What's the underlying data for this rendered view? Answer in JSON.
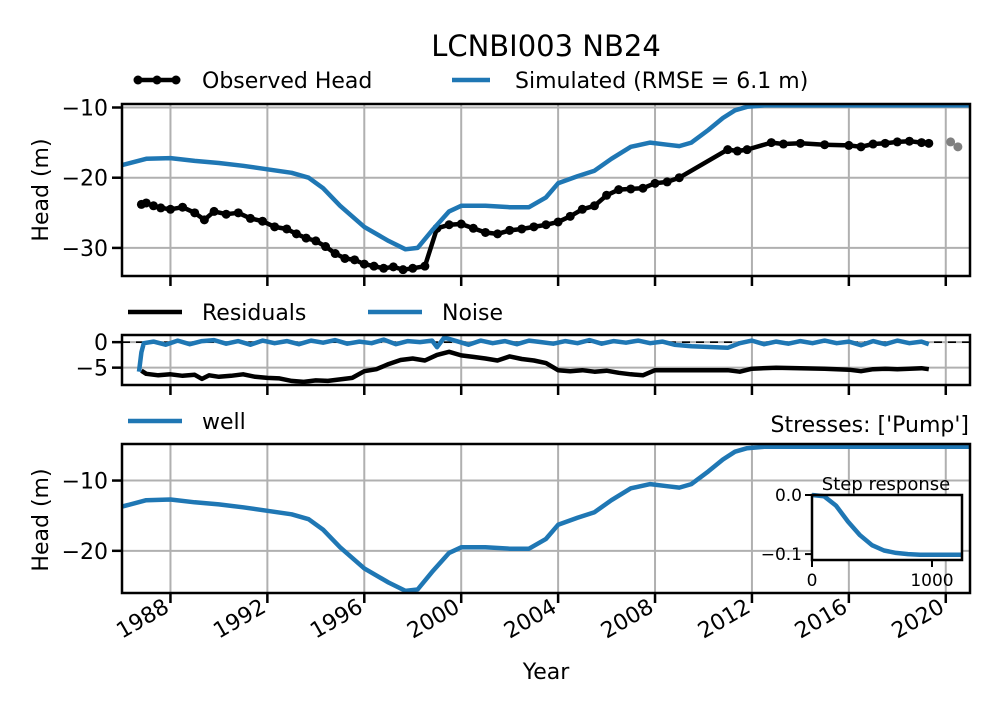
{
  "colors": {
    "observed": "#000000",
    "simulated": "#1f77b4",
    "grid": "#b0b0b0",
    "excluded": "#808080"
  },
  "x_axis": {
    "label": "Year",
    "ticks": [
      1988,
      1992,
      1996,
      2000,
      2004,
      2008,
      2012,
      2016,
      2020
    ],
    "tick_labels": [
      "1988",
      "1992",
      "1996",
      "2000",
      "2004",
      "2008",
      "2012",
      "2016",
      "2020"
    ],
    "range": [
      1986.0,
      2021.0
    ]
  },
  "chart_data": [
    {
      "type": "line",
      "title": "LCNBI003 NB24",
      "ylabel": "Head (m)",
      "ylim": [
        -34,
        -9.5
      ],
      "yticks": [
        -30,
        -20,
        -10
      ],
      "ytick_labels": [
        "−30",
        "−20",
        "−10"
      ],
      "grid": true,
      "legend": {
        "placement": "top",
        "entries": [
          "Observed Head",
          "Simulated (RMSE = 6.1 m)"
        ]
      },
      "series": [
        {
          "name": "Observed Head",
          "style": "line-markers",
          "x": [
            1986.8,
            1987.0,
            1987.3,
            1987.6,
            1988.0,
            1988.5,
            1989.0,
            1989.4,
            1989.8,
            1990.3,
            1990.8,
            1991.3,
            1991.8,
            1992.3,
            1992.8,
            1993.2,
            1993.6,
            1994.0,
            1994.4,
            1994.8,
            1995.2,
            1995.6,
            1996.0,
            1996.4,
            1996.8,
            1997.2,
            1997.6,
            1998.0,
            1998.5,
            1999.0,
            1999.5,
            2000.0,
            2000.5,
            2001.0,
            2001.5,
            2002.0,
            2002.5,
            2003.0,
            2003.5,
            2004.0,
            2004.5,
            2005.0,
            2005.5,
            2006.0,
            2006.5,
            2007.0,
            2007.5,
            2008.0,
            2008.5,
            2009.0,
            2011.0,
            2011.4,
            2011.8,
            2012.8,
            2013.3,
            2014.0,
            2015.0,
            2016.0,
            2016.5,
            2017.0,
            2017.5,
            2018.0,
            2018.5,
            2019.0,
            2019.3
          ],
          "y": [
            -23.8,
            -23.6,
            -24.0,
            -24.3,
            -24.5,
            -24.2,
            -25.0,
            -26.0,
            -24.8,
            -25.2,
            -25.0,
            -25.8,
            -26.2,
            -27.0,
            -27.3,
            -28.0,
            -28.6,
            -29.0,
            -29.8,
            -30.8,
            -31.5,
            -31.7,
            -32.3,
            -32.6,
            -32.9,
            -32.7,
            -33.1,
            -32.9,
            -32.6,
            -27.2,
            -26.7,
            -26.6,
            -27.2,
            -27.8,
            -28.0,
            -27.5,
            -27.3,
            -27.0,
            -26.7,
            -26.3,
            -25.5,
            -24.5,
            -24.0,
            -22.5,
            -21.7,
            -21.6,
            -21.5,
            -20.8,
            -20.6,
            -20.0,
            -16.0,
            -16.2,
            -16.0,
            -15.0,
            -15.2,
            -15.1,
            -15.3,
            -15.4,
            -15.6,
            -15.2,
            -15.1,
            -14.9,
            -14.8,
            -15.0,
            -15.1
          ]
        },
        {
          "name": "Simulated (RMSE = 6.1 m)",
          "x": [
            1986.0,
            1987.0,
            1988.0,
            1989.0,
            1990.0,
            1991.0,
            1992.0,
            1993.0,
            1993.7,
            1994.3,
            1995.0,
            1996.0,
            1997.0,
            1997.7,
            1998.2,
            1998.8,
            1999.5,
            2000.0,
            2001.0,
            2002.0,
            2002.8,
            2003.5,
            2004.0,
            2004.8,
            2005.5,
            2006.2,
            2007.0,
            2007.8,
            2008.5,
            2009.0,
            2009.5,
            2010.2,
            2010.8,
            2011.3,
            2011.8,
            2012.5,
            2013.0,
            2014.0,
            2016.0,
            2018.0,
            2021.0
          ],
          "y": [
            -18.2,
            -17.3,
            -17.2,
            -17.6,
            -17.9,
            -18.3,
            -18.8,
            -19.3,
            -20.0,
            -21.5,
            -24.0,
            -27.0,
            -29.0,
            -30.2,
            -30.0,
            -27.5,
            -24.8,
            -24.0,
            -24.0,
            -24.2,
            -24.2,
            -22.8,
            -20.8,
            -19.8,
            -19.0,
            -17.3,
            -15.6,
            -15.0,
            -15.3,
            -15.5,
            -15.0,
            -13.2,
            -11.5,
            -10.4,
            -9.9,
            -9.7,
            -9.7,
            -9.7,
            -9.7,
            -9.7,
            -9.7
          ]
        }
      ],
      "excluded_points": {
        "x": [
          2020.2,
          2020.5
        ],
        "y": [
          -14.9,
          -15.6
        ]
      }
    },
    {
      "type": "line",
      "ylim": [
        -8.4,
        1.4
      ],
      "yticks": [
        -5,
        0
      ],
      "ytick_labels": [
        "−5",
        "0"
      ],
      "grid": true,
      "zero_line": true,
      "legend": {
        "placement": "top",
        "entries": [
          "Residuals",
          "Noise"
        ]
      },
      "series": [
        {
          "name": "Residuals",
          "x": [
            1986.8,
            1987.0,
            1987.5,
            1988.0,
            1988.5,
            1989.0,
            1989.3,
            1989.6,
            1990.0,
            1990.5,
            1991.0,
            1991.5,
            1992.0,
            1992.5,
            1993.0,
            1993.5,
            1994.0,
            1994.5,
            1995.0,
            1995.5,
            1996.0,
            1996.5,
            1997.0,
            1997.5,
            1998.0,
            1998.5,
            1999.0,
            1999.5,
            2000.0,
            2000.5,
            2001.0,
            2001.5,
            2002.0,
            2002.5,
            2003.0,
            2003.5,
            2004.0,
            2004.5,
            2005.0,
            2005.5,
            2006.0,
            2006.5,
            2007.0,
            2007.5,
            2008.0,
            2009.0,
            2010.0,
            2011.0,
            2011.5,
            2012.0,
            2013.0,
            2014.0,
            2015.0,
            2016.0,
            2016.5,
            2017.0,
            2017.5,
            2018.0,
            2019.0,
            2019.3
          ],
          "y": [
            -5.6,
            -6.2,
            -6.5,
            -6.3,
            -6.6,
            -6.4,
            -7.2,
            -6.5,
            -6.8,
            -6.6,
            -6.3,
            -6.8,
            -7.0,
            -7.1,
            -7.6,
            -7.8,
            -7.5,
            -7.6,
            -7.3,
            -7.0,
            -5.7,
            -5.3,
            -4.3,
            -3.5,
            -3.2,
            -3.6,
            -2.5,
            -1.9,
            -2.6,
            -2.9,
            -3.2,
            -3.6,
            -2.8,
            -3.3,
            -3.6,
            -4.1,
            -5.5,
            -5.7,
            -5.5,
            -5.8,
            -5.6,
            -6.0,
            -6.3,
            -6.5,
            -5.5,
            -5.5,
            -5.5,
            -5.5,
            -5.8,
            -5.2,
            -5.0,
            -5.1,
            -5.2,
            -5.4,
            -5.7,
            -5.3,
            -5.2,
            -5.3,
            -5.1,
            -5.3
          ]
        },
        {
          "name": "Noise",
          "x": [
            1986.7,
            1986.8,
            1986.9,
            1987.3,
            1987.8,
            1988.3,
            1988.8,
            1989.3,
            1989.8,
            1990.3,
            1990.8,
            1991.3,
            1991.8,
            1992.3,
            1992.8,
            1993.3,
            1993.8,
            1994.3,
            1994.8,
            1995.3,
            1995.8,
            1996.3,
            1996.8,
            1997.3,
            1997.8,
            1998.3,
            1998.8,
            1999.0,
            1999.3,
            1999.8,
            2000.3,
            2000.8,
            2001.3,
            2001.8,
            2002.3,
            2002.8,
            2003.3,
            2003.8,
            2004.3,
            2004.8,
            2005.3,
            2005.8,
            2006.3,
            2006.8,
            2007.3,
            2007.8,
            2008.3,
            2008.8,
            2009.5,
            2010.5,
            2011.0,
            2011.5,
            2012.0,
            2012.5,
            2013.0,
            2013.5,
            2014.0,
            2014.5,
            2015.0,
            2015.5,
            2016.0,
            2016.5,
            2017.0,
            2017.5,
            2018.0,
            2018.5,
            2019.0,
            2019.3
          ],
          "y": [
            -5.8,
            -2.0,
            -0.2,
            0.1,
            -0.5,
            0.3,
            -0.4,
            0.2,
            0.4,
            -0.3,
            0.2,
            -0.5,
            0.3,
            -0.2,
            0.2,
            -0.4,
            0.3,
            -0.1,
            0.4,
            -0.3,
            0.1,
            -0.2,
            0.5,
            -0.4,
            0.2,
            0.0,
            0.3,
            -1.0,
            0.9,
            0.2,
            -0.5,
            0.3,
            -0.2,
            0.2,
            -0.4,
            0.3,
            0.0,
            -0.3,
            0.2,
            -0.2,
            0.4,
            -0.3,
            0.2,
            -0.1,
            0.3,
            -0.2,
            0.1,
            -0.5,
            -0.8,
            -1.0,
            -1.1,
            -0.2,
            0.3,
            -0.4,
            0.1,
            -0.3,
            0.2,
            -0.2,
            0.3,
            -0.2,
            0.1,
            -0.6,
            0.2,
            -0.4,
            0.3,
            -0.2,
            0.1,
            -0.4
          ]
        }
      ]
    },
    {
      "type": "line",
      "ylabel": "Head (m)",
      "ylim": [
        -26,
        -4.8
      ],
      "yticks": [
        -20,
        -10
      ],
      "ytick_labels": [
        "−20",
        "−10"
      ],
      "grid": true,
      "annotation": "Stresses: ['Pump']",
      "legend": {
        "placement": "top-left",
        "entries": [
          "well"
        ]
      },
      "series": [
        {
          "name": "well",
          "x": [
            1986.0,
            1987.0,
            1988.0,
            1989.0,
            1990.0,
            1991.0,
            1992.0,
            1993.0,
            1993.7,
            1994.3,
            1995.0,
            1996.0,
            1997.0,
            1997.7,
            1998.2,
            1998.8,
            1999.5,
            2000.0,
            2001.0,
            2002.0,
            2002.8,
            2003.5,
            2004.0,
            2004.8,
            2005.5,
            2006.2,
            2007.0,
            2007.8,
            2008.5,
            2009.0,
            2009.5,
            2010.2,
            2010.8,
            2011.3,
            2011.8,
            2012.5,
            2013.0,
            2014.0,
            2016.0,
            2018.0,
            2021.0
          ],
          "y": [
            -13.7,
            -12.8,
            -12.7,
            -13.1,
            -13.4,
            -13.8,
            -14.3,
            -14.8,
            -15.5,
            -17.0,
            -19.5,
            -22.5,
            -24.5,
            -25.7,
            -25.5,
            -23.0,
            -20.3,
            -19.5,
            -19.5,
            -19.7,
            -19.7,
            -18.3,
            -16.3,
            -15.3,
            -14.5,
            -12.8,
            -11.1,
            -10.5,
            -10.8,
            -11.0,
            -10.5,
            -8.7,
            -7.0,
            -5.9,
            -5.4,
            -5.2,
            -5.2,
            -5.2,
            -5.2,
            -5.2,
            -5.2
          ]
        }
      ],
      "inset": {
        "title": "Step response",
        "xlim": [
          0,
          1250
        ],
        "ylim": [
          -0.11,
          0.0
        ],
        "xticks": [
          0,
          1000
        ],
        "xtick_labels": [
          "0",
          "1000"
        ],
        "yticks": [
          0.0,
          -0.1
        ],
        "ytick_labels": [
          "0.0",
          "−0.1"
        ],
        "x": [
          0,
          100,
          200,
          300,
          400,
          500,
          600,
          700,
          800,
          900,
          1000,
          1100,
          1250
        ],
        "y": [
          0.0,
          -0.002,
          -0.018,
          -0.045,
          -0.068,
          -0.085,
          -0.094,
          -0.098,
          -0.1,
          -0.101,
          -0.101,
          -0.101,
          -0.101
        ]
      }
    }
  ]
}
